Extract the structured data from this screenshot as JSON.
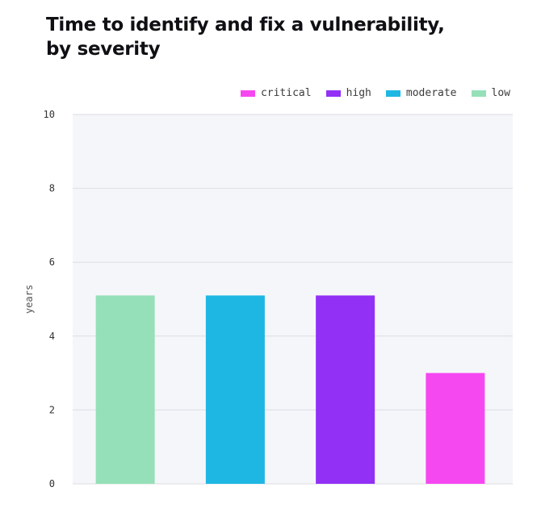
{
  "chart_data": {
    "type": "bar",
    "title": [
      "Time to identify and fix a vulnerability,",
      "by severity"
    ],
    "ylabel": "years",
    "xlabel": "",
    "ylim": [
      0,
      10
    ],
    "yticks": [
      "0",
      "2",
      "4",
      "6",
      "8",
      "10"
    ],
    "grid": true,
    "legend_position": "top-right",
    "categories": [
      "low",
      "moderate",
      "high",
      "critical"
    ],
    "values": [
      5.1,
      5.1,
      5.1,
      3.0
    ],
    "colors": {
      "low": "#95e0b8",
      "moderate": "#1eb7e3",
      "high": "#9230f6",
      "critical": "#f648f0"
    },
    "legend": [
      {
        "label": "critical",
        "color": "#f648f0"
      },
      {
        "label": "high",
        "color": "#9230f6"
      },
      {
        "label": "moderate",
        "color": "#1eb7e3"
      },
      {
        "label": "low",
        "color": "#95e0b8"
      }
    ],
    "plot_background": "#f5f6fa",
    "grid_color": "#dcdde3"
  }
}
